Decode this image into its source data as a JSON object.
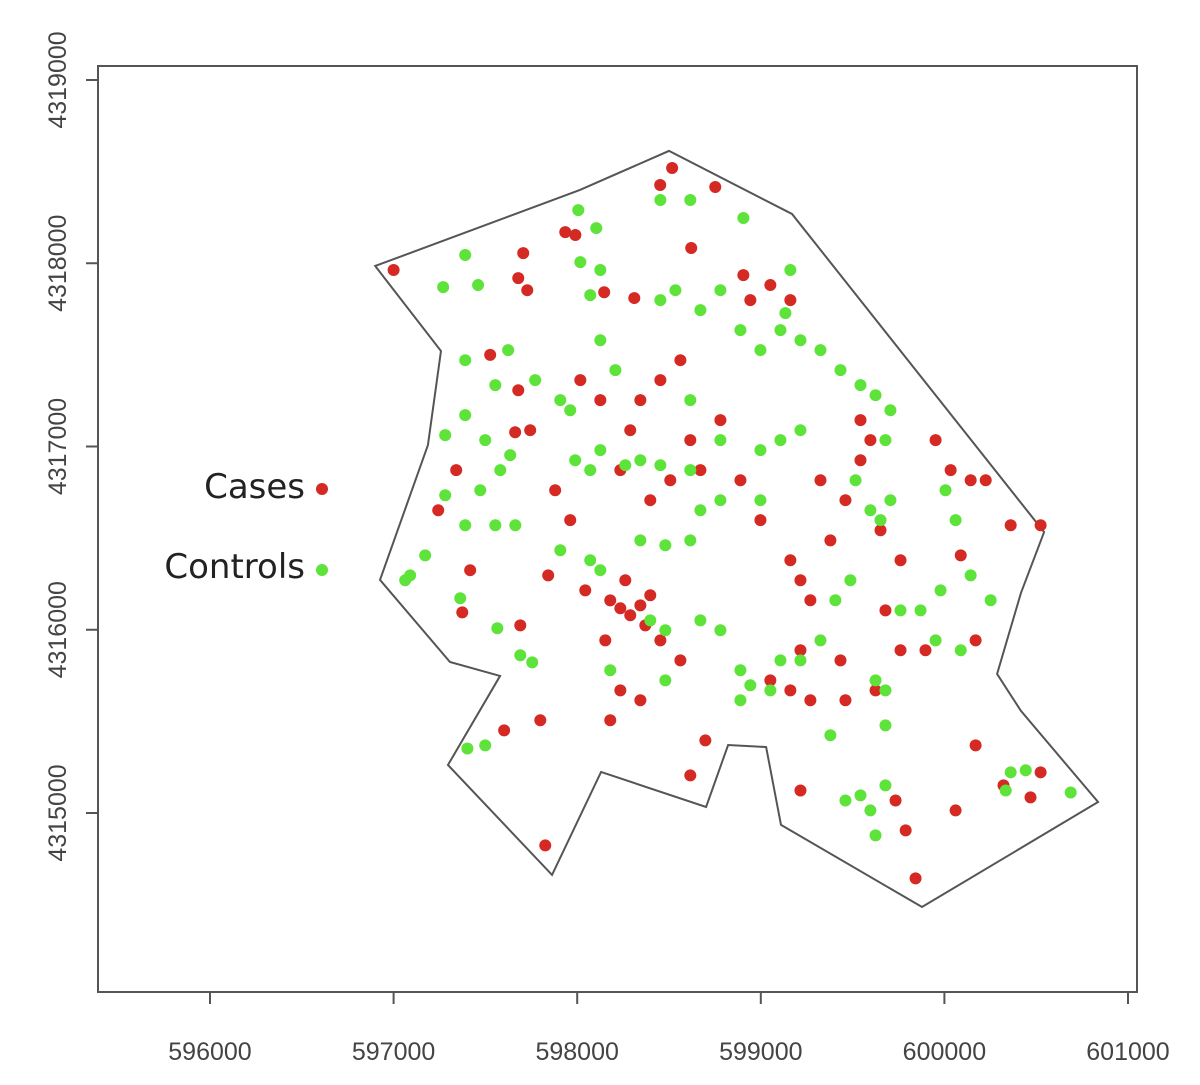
{
  "chart_data": {
    "type": "scatter",
    "title": "",
    "xlabel": "",
    "ylabel": "",
    "xlim": [
      595400,
      601050
    ],
    "ylim": [
      4313800,
      4319070
    ],
    "x_ticks": [
      596000,
      597000,
      598000,
      599000,
      600000,
      601000
    ],
    "y_ticks": [
      4315000,
      4316000,
      4317000,
      4318000,
      4319000
    ],
    "x_tick_labels": [
      "596000",
      "597000",
      "598000",
      "599000",
      "600000",
      "601000"
    ],
    "y_tick_labels": [
      "4315000",
      "4316000",
      "4317000",
      "4318000",
      "4319000"
    ],
    "grid": false,
    "legend_position": "left",
    "boundary": [
      [
        596900,
        4317985
      ],
      [
        597258,
        4317521
      ],
      [
        597187,
        4317008
      ],
      [
        596926,
        4316272
      ],
      [
        597307,
        4315824
      ],
      [
        597580,
        4315748
      ],
      [
        597296,
        4315262
      ],
      [
        597863,
        4314662
      ],
      [
        598130,
        4315224
      ],
      [
        598702,
        4315033
      ],
      [
        598822,
        4315371
      ],
      [
        599029,
        4315360
      ],
      [
        599110,
        4314935
      ],
      [
        599878,
        4314487
      ],
      [
        600837,
        4315060
      ],
      [
        600417,
        4315557
      ],
      [
        600287,
        4315759
      ],
      [
        600417,
        4316201
      ],
      [
        600543,
        4316533
      ],
      [
        599170,
        4318269
      ],
      [
        598500,
        4318613
      ],
      [
        598015,
        4318400
      ]
    ],
    "series": [
      {
        "name": "Cases",
        "color": "#d42a23",
        "points": [
          [
            597000,
            4317963
          ],
          [
            598452,
            4318427
          ],
          [
            598517,
            4318520
          ],
          [
            598752,
            4318416
          ],
          [
            597935,
            4318170
          ],
          [
            597990,
            4318154
          ],
          [
            597706,
            4318055
          ],
          [
            597679,
            4317919
          ],
          [
            597728,
            4317853
          ],
          [
            598621,
            4318083
          ],
          [
            598905,
            4317935
          ],
          [
            598147,
            4317842
          ],
          [
            598311,
            4317810
          ],
          [
            597526,
            4317500
          ],
          [
            597679,
            4317307
          ],
          [
            597744,
            4317089
          ],
          [
            597662,
            4317078
          ],
          [
            597341,
            4316871
          ],
          [
            597243,
            4316652
          ],
          [
            597417,
            4316325
          ],
          [
            597374,
            4316095
          ],
          [
            597690,
            4316024
          ],
          [
            597602,
            4315451
          ],
          [
            597799,
            4315506
          ],
          [
            597826,
            4314823
          ],
          [
            597842,
            4316297
          ],
          [
            598044,
            4316215
          ],
          [
            597962,
            4316598
          ],
          [
            597880,
            4316761
          ],
          [
            598180,
            4316160
          ],
          [
            598235,
            4316117
          ],
          [
            598289,
            4316079
          ],
          [
            598344,
            4316133
          ],
          [
            598398,
            4316188
          ],
          [
            598262,
            4316270
          ],
          [
            598371,
            4316024
          ],
          [
            598153,
            4315942
          ],
          [
            598453,
            4315942
          ],
          [
            598235,
            4315669
          ],
          [
            598180,
            4315506
          ],
          [
            598344,
            4315615
          ],
          [
            598616,
            4315205
          ],
          [
            598698,
            4315396
          ],
          [
            598562,
            4315833
          ],
          [
            598289,
            4317089
          ],
          [
            598344,
            4317253
          ],
          [
            598453,
            4317362
          ],
          [
            598562,
            4317471
          ],
          [
            598616,
            4317035
          ],
          [
            598671,
            4316871
          ],
          [
            598507,
            4316816
          ],
          [
            598398,
            4316707
          ],
          [
            598235,
            4316871
          ],
          [
            598126,
            4317253
          ],
          [
            598017,
            4317362
          ],
          [
            598780,
            4317144
          ],
          [
            598889,
            4316816
          ],
          [
            598998,
            4316598
          ],
          [
            599161,
            4316379
          ],
          [
            599216,
            4316270
          ],
          [
            599270,
            4316161
          ],
          [
            599379,
            4316488
          ],
          [
            599325,
            4316816
          ],
          [
            599461,
            4316707
          ],
          [
            599543,
            4316925
          ],
          [
            599597,
            4317035
          ],
          [
            599543,
            4317144
          ],
          [
            599652,
            4316543
          ],
          [
            599761,
            4316379
          ],
          [
            599052,
            4315724
          ],
          [
            599161,
            4315669
          ],
          [
            599270,
            4315615
          ],
          [
            599216,
            4315888
          ],
          [
            599434,
            4315833
          ],
          [
            599216,
            4315123
          ],
          [
            599734,
            4315068
          ],
          [
            599789,
            4314905
          ],
          [
            599843,
            4314643
          ],
          [
            599952,
            4317035
          ],
          [
            600034,
            4316871
          ],
          [
            600143,
            4316816
          ],
          [
            600225,
            4316816
          ],
          [
            600361,
            4316570
          ],
          [
            600089,
            4316406
          ],
          [
            600170,
            4315942
          ],
          [
            600061,
            4315014
          ],
          [
            600170,
            4315369
          ],
          [
            600524,
            4316570
          ],
          [
            600322,
            4315151
          ],
          [
            600469,
            4315085
          ],
          [
            600524,
            4315222
          ],
          [
            599897,
            4315888
          ],
          [
            599761,
            4315888
          ],
          [
            599679,
            4316106
          ],
          [
            599625,
            4315669
          ],
          [
            599461,
            4315615
          ],
          [
            598943,
            4317799
          ],
          [
            599161,
            4317799
          ],
          [
            599052,
            4317881
          ]
        ]
      },
      {
        "name": "Controls",
        "color": "#5ee33a",
        "points": [
          [
            598006,
            4318290
          ],
          [
            598104,
            4318192
          ],
          [
            598453,
            4318345
          ],
          [
            598616,
            4318345
          ],
          [
            598905,
            4318247
          ],
          [
            597390,
            4318045
          ],
          [
            597270,
            4317870
          ],
          [
            597460,
            4317881
          ],
          [
            598017,
            4318006
          ],
          [
            598126,
            4317963
          ],
          [
            598071,
            4317826
          ],
          [
            597390,
            4317471
          ],
          [
            597554,
            4317335
          ],
          [
            597624,
            4317526
          ],
          [
            597771,
            4317362
          ],
          [
            597908,
            4317253
          ],
          [
            597962,
            4317198
          ],
          [
            598126,
            4317580
          ],
          [
            598208,
            4317417
          ],
          [
            597281,
            4317062
          ],
          [
            597390,
            4317171
          ],
          [
            597499,
            4317035
          ],
          [
            597635,
            4316953
          ],
          [
            597581,
            4316871
          ],
          [
            597472,
            4316761
          ],
          [
            597281,
            4316734
          ],
          [
            597390,
            4316570
          ],
          [
            597554,
            4316570
          ],
          [
            597663,
            4316570
          ],
          [
            597090,
            4316297
          ],
          [
            597172,
            4316406
          ],
          [
            597363,
            4316172
          ],
          [
            597565,
            4316008
          ],
          [
            597690,
            4315861
          ],
          [
            597755,
            4315822
          ],
          [
            597402,
            4315352
          ],
          [
            597499,
            4315369
          ],
          [
            597989,
            4316925
          ],
          [
            598071,
            4316871
          ],
          [
            598126,
            4316980
          ],
          [
            598262,
            4316898
          ],
          [
            598344,
            4316925
          ],
          [
            598453,
            4316898
          ],
          [
            598616,
            4316871
          ],
          [
            598453,
            4317799
          ],
          [
            598535,
            4317853
          ],
          [
            598671,
            4317744
          ],
          [
            598780,
            4317853
          ],
          [
            598889,
            4317635
          ],
          [
            598998,
            4317526
          ],
          [
            599107,
            4317635
          ],
          [
            599216,
            4317580
          ],
          [
            599325,
            4317526
          ],
          [
            599434,
            4317417
          ],
          [
            599543,
            4317335
          ],
          [
            599625,
            4317280
          ],
          [
            599161,
            4317963
          ],
          [
            599134,
            4317728
          ],
          [
            598616,
            4317253
          ],
          [
            598780,
            4317035
          ],
          [
            598998,
            4316980
          ],
          [
            599107,
            4317035
          ],
          [
            599216,
            4317089
          ],
          [
            597908,
            4316434
          ],
          [
            598071,
            4316379
          ],
          [
            598126,
            4316325
          ],
          [
            598344,
            4316488
          ],
          [
            598480,
            4316461
          ],
          [
            598616,
            4316488
          ],
          [
            598671,
            4316652
          ],
          [
            598780,
            4316707
          ],
          [
            598998,
            4316707
          ],
          [
            598398,
            4316051
          ],
          [
            598480,
            4315997
          ],
          [
            598671,
            4316051
          ],
          [
            598780,
            4315997
          ],
          [
            598180,
            4315779
          ],
          [
            598480,
            4315724
          ],
          [
            598889,
            4315779
          ],
          [
            598943,
            4315697
          ],
          [
            599052,
            4315669
          ],
          [
            598889,
            4315615
          ],
          [
            599107,
            4315833
          ],
          [
            599216,
            4315833
          ],
          [
            599325,
            4315942
          ],
          [
            599406,
            4316161
          ],
          [
            599488,
            4316270
          ],
          [
            599516,
            4316816
          ],
          [
            599597,
            4316652
          ],
          [
            599652,
            4316598
          ],
          [
            599706,
            4316707
          ],
          [
            599679,
            4317035
          ],
          [
            599706,
            4317198
          ],
          [
            599761,
            4316106
          ],
          [
            599870,
            4316106
          ],
          [
            599979,
            4316215
          ],
          [
            599952,
            4315942
          ],
          [
            600089,
            4315888
          ],
          [
            600143,
            4316297
          ],
          [
            600252,
            4316161
          ],
          [
            600006,
            4316761
          ],
          [
            600061,
            4316598
          ],
          [
            599625,
            4315724
          ],
          [
            599679,
            4315669
          ],
          [
            599679,
            4315478
          ],
          [
            599379,
            4315424
          ],
          [
            599461,
            4315068
          ],
          [
            599543,
            4315096
          ],
          [
            599679,
            4315151
          ],
          [
            599625,
            4314878
          ],
          [
            599597,
            4315014
          ],
          [
            600334,
            4315123
          ],
          [
            600361,
            4315222
          ],
          [
            600443,
            4315233
          ],
          [
            600688,
            4315112
          ],
          [
            597063,
            4316270
          ]
        ]
      }
    ]
  }
}
